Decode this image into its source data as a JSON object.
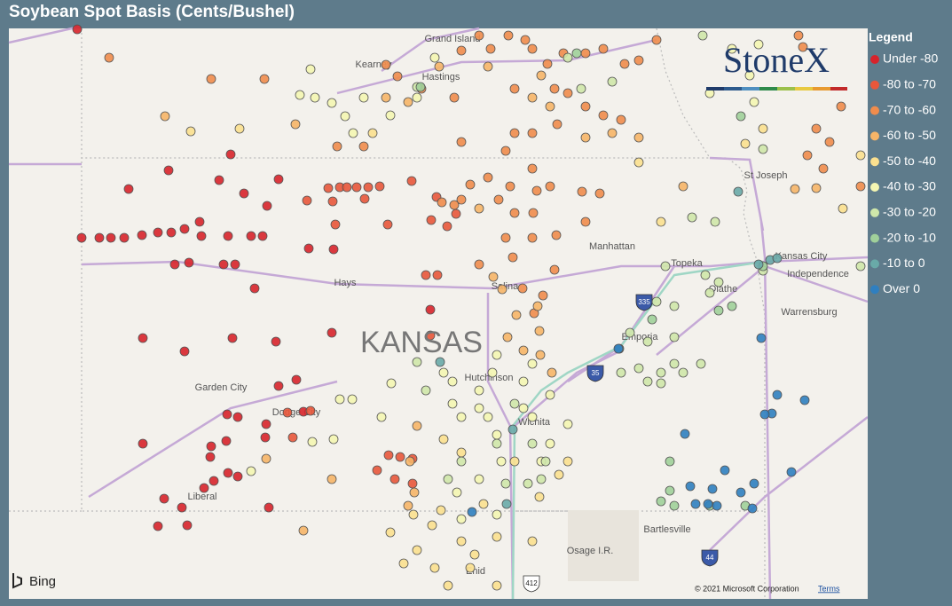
{
  "title": "Soybean Spot Basis (Cents/Bushel)",
  "legend": {
    "title": "Legend",
    "items": [
      {
        "label": "Under -80",
        "color": "#d7232b"
      },
      {
        "label": "-80 to -70",
        "color": "#e8573b"
      },
      {
        "label": "-70 to -60",
        "color": "#f08c4c"
      },
      {
        "label": "-60 to -50",
        "color": "#f6b568"
      },
      {
        "label": "-50 to -40",
        "color": "#fbe08f"
      },
      {
        "label": "-40 to -30",
        "color": "#f4f6b2"
      },
      {
        "label": "-30 to -20",
        "color": "#cfe7aa"
      },
      {
        "label": "-20 to -10",
        "color": "#a0d09a"
      },
      {
        "label": "-10 to 0",
        "color": "#69aaa8"
      },
      {
        "label": "Over 0",
        "color": "#2f7fc0"
      }
    ]
  },
  "map_labels": [
    "Grand Island",
    "Kearney",
    "Hastings",
    "St Joseph",
    "Manhattan",
    "Topeka",
    "Kansas City",
    "Independence",
    "Olathe",
    "Warrensburg",
    "Hays",
    "Salina",
    "Emporia",
    "Garden City",
    "Dodge City",
    "Hutchinson",
    "Wichita",
    "Liberal",
    "Bartlesville",
    "Osage I.R.",
    "Enid"
  ],
  "state_label": "KANSAS",
  "shields": [
    "335",
    "35",
    "44",
    "412"
  ],
  "logo": "StoneX",
  "attribution": {
    "bing": "Bing",
    "copyright": "© 2021 Microsoft Corporation",
    "terms": "Terms"
  }
}
